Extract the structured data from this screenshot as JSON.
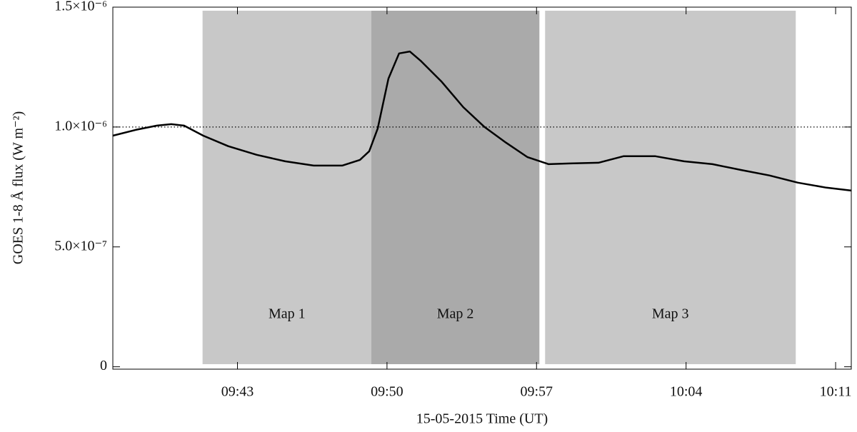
{
  "chart_data": {
    "type": "line",
    "xlabel": "15-05-2015 Time (UT)",
    "ylabel": "GOES 1-8 Å flux (W m⁻²)",
    "xlim": [
      "09:37:10",
      "10:11:44"
    ],
    "xticks": [
      "09:43",
      "09:50",
      "09:57",
      "10:04",
      "10:11"
    ],
    "ylim": [
      -1e-08,
      1.5e-06
    ],
    "yticks": [
      {
        "value": 0,
        "label": "0"
      },
      {
        "value": 5e-07,
        "label": "5.0×10⁻⁷"
      },
      {
        "value": 1e-06,
        "label": "1.0×10⁻⁶"
      },
      {
        "value": 1.5e-06,
        "label": "1.5×10⁻⁶"
      }
    ],
    "reference_line": 1e-06,
    "regions": [
      {
        "label": "Map 1",
        "start": "09:41:22",
        "end": "09:49:16",
        "color": "#c8c8c8"
      },
      {
        "label": "Map 2",
        "start": "09:49:16",
        "end": "09:57:08",
        "color": "#aaaaaa"
      },
      {
        "label": "Map 3",
        "start": "09:57:24",
        "end": "10:09:08",
        "color": "#c8c8c8"
      }
    ],
    "series": [
      {
        "color": "#000000",
        "x": [
          "09:37:10",
          "09:38:14",
          "09:39:14",
          "09:39:54",
          "09:40:30",
          "09:41:24",
          "09:42:34",
          "09:43:54",
          "09:45:14",
          "09:46:34",
          "09:47:54",
          "09:48:44",
          "09:49:10",
          "09:49:34",
          "09:50:04",
          "09:50:34",
          "09:51:04",
          "09:51:34",
          "09:52:34",
          "09:53:34",
          "09:54:34",
          "09:55:34",
          "09:56:34",
          "09:57:34",
          "09:58:34",
          "09:59:54",
          "10:01:04",
          "10:02:34",
          "10:03:54",
          "10:05:14",
          "10:06:34",
          "10:07:54",
          "10:09:14",
          "10:10:34",
          "10:11:44"
        ],
        "values": [
          9.64e-07,
          9.88e-07,
          1.006e-06,
          1.012e-06,
          1.006e-06,
          9.64e-07,
          9.2e-07,
          8.84e-07,
          8.57e-07,
          8.39e-07,
          8.39e-07,
          8.63e-07,
          8.99e-07,
          9.94e-07,
          1.202e-06,
          1.307e-06,
          1.315e-06,
          1.277e-06,
          1.188e-06,
          1.083e-06,
          1e-06,
          9.35e-07,
          8.75e-07,
          8.45e-07,
          8.48e-07,
          8.51e-07,
          8.78e-07,
          8.78e-07,
          8.57e-07,
          8.45e-07,
          8.21e-07,
          7.98e-07,
          7.68e-07,
          7.47e-07,
          7.35e-07
        ]
      }
    ]
  }
}
